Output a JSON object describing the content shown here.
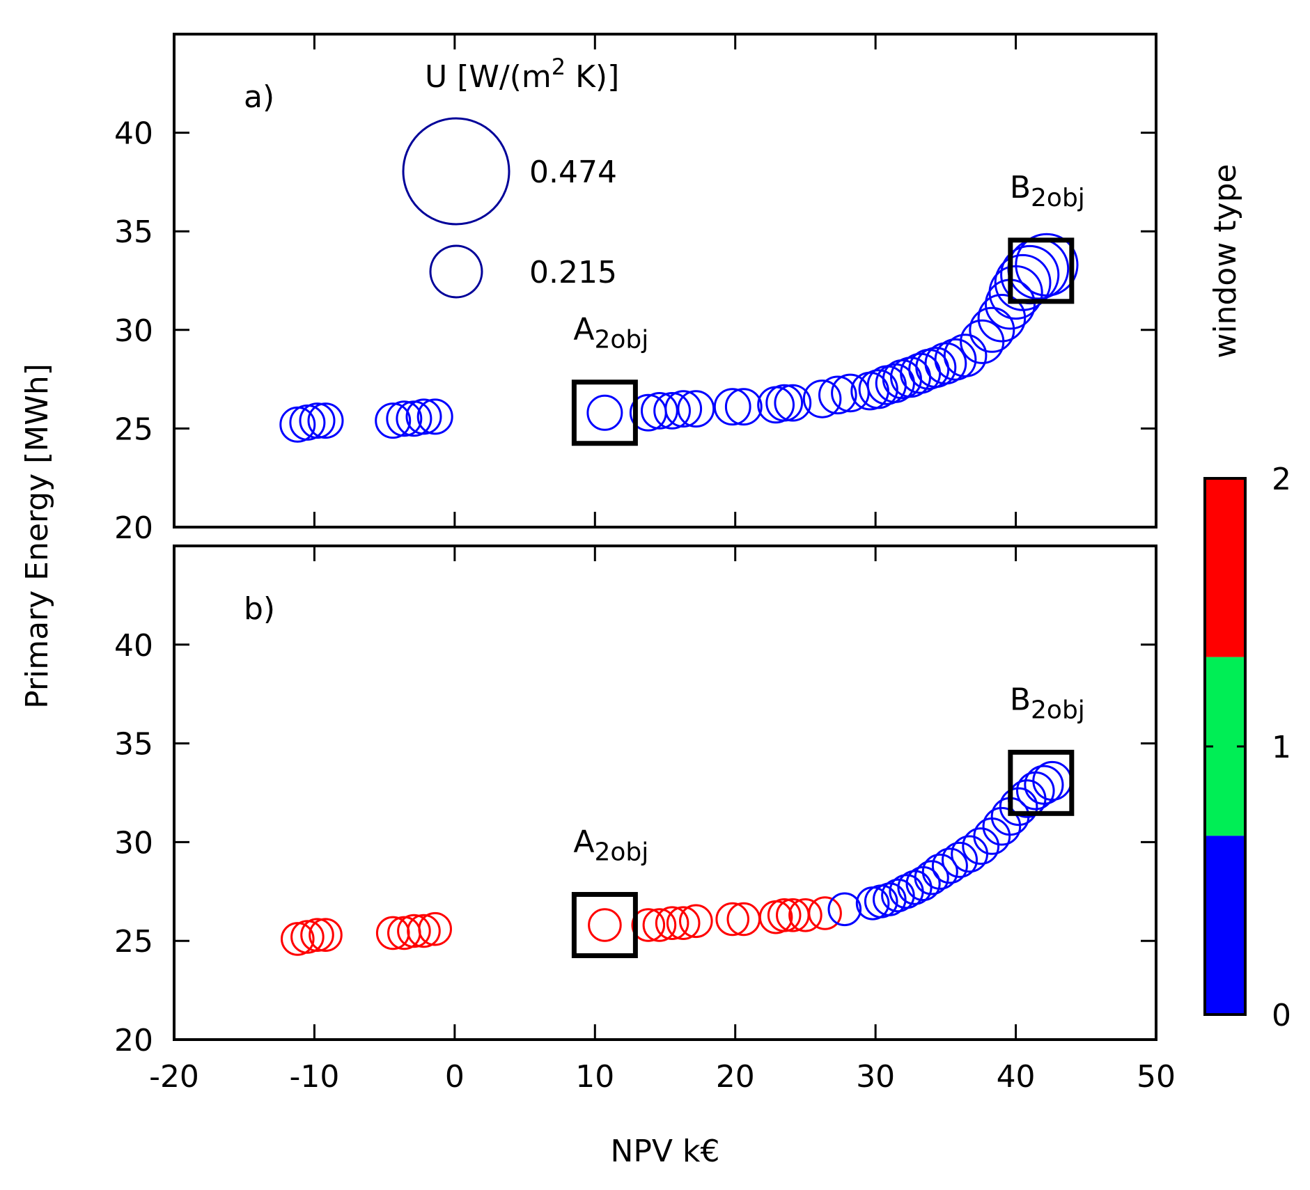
{
  "colors": {
    "type0": "#0000ff",
    "type1": "#00ee55",
    "type2": "#ff0000",
    "legend_circle": "#000099",
    "frame": "#000000",
    "marker_box": "#000000"
  },
  "chart_data": [
    {
      "type": "scatter",
      "panel_label": "a)",
      "xlim": [
        -20,
        50
      ],
      "ylim": [
        20,
        45
      ],
      "xticks": [
        -20,
        -10,
        0,
        10,
        20,
        30,
        40,
        50
      ],
      "yticks": [
        20,
        25,
        30,
        35,
        40
      ],
      "ytick_labels": [
        "20",
        "25",
        "30",
        "35",
        "40"
      ],
      "size_legend": {
        "title_prefix": "U [W/(m",
        "title_sup": "2",
        "title_suffix": " K)]",
        "entries": [
          {
            "label": "0.474",
            "u": 0.474
          },
          {
            "label": "0.215",
            "u": 0.215
          }
        ]
      },
      "annotations": [
        {
          "base": "A",
          "sub": "2obj",
          "x": 10.7,
          "y": 25.8
        },
        {
          "base": "B",
          "sub": "2obj",
          "x": 41.8,
          "y": 33.0
        }
      ],
      "points": [
        {
          "x": -11.2,
          "y": 25.2,
          "u": 0.25,
          "t": 0
        },
        {
          "x": -10.5,
          "y": 25.3,
          "u": 0.25,
          "t": 0
        },
        {
          "x": -9.8,
          "y": 25.4,
          "u": 0.25,
          "t": 0
        },
        {
          "x": -9.2,
          "y": 25.4,
          "u": 0.25,
          "t": 0
        },
        {
          "x": -4.4,
          "y": 25.4,
          "u": 0.25,
          "t": 0
        },
        {
          "x": -3.6,
          "y": 25.5,
          "u": 0.25,
          "t": 0
        },
        {
          "x": -2.9,
          "y": 25.5,
          "u": 0.25,
          "t": 0
        },
        {
          "x": -2.2,
          "y": 25.6,
          "u": 0.25,
          "t": 0
        },
        {
          "x": -1.4,
          "y": 25.6,
          "u": 0.25,
          "t": 0
        },
        {
          "x": 10.7,
          "y": 25.8,
          "u": 0.25,
          "t": 0
        },
        {
          "x": 13.8,
          "y": 25.8,
          "u": 0.26,
          "t": 0
        },
        {
          "x": 14.6,
          "y": 25.9,
          "u": 0.26,
          "t": 0
        },
        {
          "x": 15.5,
          "y": 25.9,
          "u": 0.26,
          "t": 0
        },
        {
          "x": 16.3,
          "y": 26.0,
          "u": 0.26,
          "t": 0
        },
        {
          "x": 17.2,
          "y": 26.0,
          "u": 0.26,
          "t": 0
        },
        {
          "x": 19.8,
          "y": 26.1,
          "u": 0.26,
          "t": 0
        },
        {
          "x": 20.6,
          "y": 26.1,
          "u": 0.26,
          "t": 0
        },
        {
          "x": 22.9,
          "y": 26.2,
          "u": 0.26,
          "t": 0
        },
        {
          "x": 23.5,
          "y": 26.3,
          "u": 0.26,
          "t": 0
        },
        {
          "x": 24.1,
          "y": 26.3,
          "u": 0.26,
          "t": 0
        },
        {
          "x": 26.2,
          "y": 26.5,
          "u": 0.27,
          "t": 0
        },
        {
          "x": 27.3,
          "y": 26.7,
          "u": 0.27,
          "t": 0
        },
        {
          "x": 28.2,
          "y": 26.8,
          "u": 0.27,
          "t": 0
        },
        {
          "x": 29.6,
          "y": 26.9,
          "u": 0.27,
          "t": 0
        },
        {
          "x": 30.2,
          "y": 27.0,
          "u": 0.28,
          "t": 0
        },
        {
          "x": 30.8,
          "y": 27.2,
          "u": 0.28,
          "t": 0
        },
        {
          "x": 31.4,
          "y": 27.3,
          "u": 0.28,
          "t": 0
        },
        {
          "x": 31.9,
          "y": 27.5,
          "u": 0.28,
          "t": 0
        },
        {
          "x": 32.5,
          "y": 27.6,
          "u": 0.29,
          "t": 0
        },
        {
          "x": 33.2,
          "y": 27.8,
          "u": 0.29,
          "t": 0
        },
        {
          "x": 33.8,
          "y": 28.0,
          "u": 0.29,
          "t": 0
        },
        {
          "x": 34.3,
          "y": 28.1,
          "u": 0.29,
          "t": 0
        },
        {
          "x": 35.0,
          "y": 28.3,
          "u": 0.3,
          "t": 0
        },
        {
          "x": 35.7,
          "y": 28.5,
          "u": 0.3,
          "t": 0
        },
        {
          "x": 36.4,
          "y": 28.7,
          "u": 0.31,
          "t": 0
        },
        {
          "x": 37.6,
          "y": 29.4,
          "u": 0.32,
          "t": 0
        },
        {
          "x": 38.3,
          "y": 30.0,
          "u": 0.33,
          "t": 0
        },
        {
          "x": 39.0,
          "y": 30.6,
          "u": 0.35,
          "t": 0
        },
        {
          "x": 39.6,
          "y": 31.3,
          "u": 0.37,
          "t": 0
        },
        {
          "x": 40.0,
          "y": 31.9,
          "u": 0.4,
          "t": 0
        },
        {
          "x": 40.5,
          "y": 32.4,
          "u": 0.42,
          "t": 0
        },
        {
          "x": 41.0,
          "y": 32.8,
          "u": 0.44,
          "t": 0
        },
        {
          "x": 41.6,
          "y": 33.1,
          "u": 0.46,
          "t": 0
        },
        {
          "x": 42.2,
          "y": 33.3,
          "u": 0.474,
          "t": 0
        }
      ]
    },
    {
      "type": "scatter",
      "panel_label": "b)",
      "xlabel": "NPV k€",
      "ylabel": "Primary Energy [MWh]",
      "xlim": [
        -20,
        50
      ],
      "ylim": [
        20,
        45
      ],
      "xticks": [
        -20,
        -10,
        0,
        10,
        20,
        30,
        40,
        50
      ],
      "xtick_labels": [
        "-20",
        "-10",
        "0",
        "10",
        "20",
        "30",
        "40",
        "50"
      ],
      "yticks": [
        20,
        25,
        30,
        35,
        40
      ],
      "ytick_labels": [
        "20",
        "25",
        "30",
        "35",
        "40"
      ],
      "colorbar": {
        "label": "window type",
        "min": 0,
        "max": 2,
        "ticks": [
          0,
          1,
          2
        ],
        "tick_labels": [
          "0",
          "1",
          "2"
        ]
      },
      "annotations": [
        {
          "base": "A",
          "sub": "2obj",
          "x": 10.7,
          "y": 25.8
        },
        {
          "base": "B",
          "sub": "2obj",
          "x": 41.8,
          "y": 33.0
        }
      ],
      "points": [
        {
          "x": -11.2,
          "y": 25.1,
          "u": 0.23,
          "t": 2
        },
        {
          "x": -10.5,
          "y": 25.2,
          "u": 0.23,
          "t": 2
        },
        {
          "x": -9.8,
          "y": 25.3,
          "u": 0.23,
          "t": 2
        },
        {
          "x": -9.2,
          "y": 25.3,
          "u": 0.23,
          "t": 2
        },
        {
          "x": -4.4,
          "y": 25.4,
          "u": 0.23,
          "t": 2
        },
        {
          "x": -3.6,
          "y": 25.4,
          "u": 0.23,
          "t": 2
        },
        {
          "x": -2.9,
          "y": 25.5,
          "u": 0.23,
          "t": 2
        },
        {
          "x": -2.2,
          "y": 25.5,
          "u": 0.23,
          "t": 2
        },
        {
          "x": -1.4,
          "y": 25.6,
          "u": 0.23,
          "t": 2
        },
        {
          "x": 10.7,
          "y": 25.8,
          "u": 0.23,
          "t": 2
        },
        {
          "x": 13.8,
          "y": 25.8,
          "u": 0.23,
          "t": 2
        },
        {
          "x": 14.6,
          "y": 25.8,
          "u": 0.23,
          "t": 2
        },
        {
          "x": 15.5,
          "y": 25.9,
          "u": 0.23,
          "t": 2
        },
        {
          "x": 16.3,
          "y": 25.9,
          "u": 0.23,
          "t": 2
        },
        {
          "x": 17.2,
          "y": 26.0,
          "u": 0.23,
          "t": 2
        },
        {
          "x": 19.8,
          "y": 26.1,
          "u": 0.23,
          "t": 2
        },
        {
          "x": 20.6,
          "y": 26.1,
          "u": 0.23,
          "t": 2
        },
        {
          "x": 22.9,
          "y": 26.2,
          "u": 0.23,
          "t": 2
        },
        {
          "x": 23.5,
          "y": 26.3,
          "u": 0.23,
          "t": 2
        },
        {
          "x": 24.1,
          "y": 26.3,
          "u": 0.23,
          "t": 2
        },
        {
          "x": 25.0,
          "y": 26.3,
          "u": 0.23,
          "t": 2
        },
        {
          "x": 26.4,
          "y": 26.4,
          "u": 0.23,
          "t": 2
        },
        {
          "x": 27.8,
          "y": 26.6,
          "u": 0.23,
          "t": 0
        },
        {
          "x": 29.8,
          "y": 26.9,
          "u": 0.23,
          "t": 0
        },
        {
          "x": 30.4,
          "y": 27.0,
          "u": 0.23,
          "t": 0
        },
        {
          "x": 31.0,
          "y": 27.1,
          "u": 0.23,
          "t": 0
        },
        {
          "x": 31.6,
          "y": 27.3,
          "u": 0.23,
          "t": 0
        },
        {
          "x": 32.2,
          "y": 27.5,
          "u": 0.24,
          "t": 0
        },
        {
          "x": 32.8,
          "y": 27.7,
          "u": 0.24,
          "t": 0
        },
        {
          "x": 33.4,
          "y": 27.9,
          "u": 0.24,
          "t": 0
        },
        {
          "x": 34.0,
          "y": 28.2,
          "u": 0.24,
          "t": 0
        },
        {
          "x": 34.6,
          "y": 28.5,
          "u": 0.25,
          "t": 0
        },
        {
          "x": 35.3,
          "y": 28.8,
          "u": 0.25,
          "t": 0
        },
        {
          "x": 36.0,
          "y": 29.1,
          "u": 0.25,
          "t": 0
        },
        {
          "x": 36.7,
          "y": 29.4,
          "u": 0.26,
          "t": 0
        },
        {
          "x": 37.5,
          "y": 29.8,
          "u": 0.26,
          "t": 0
        },
        {
          "x": 38.3,
          "y": 30.3,
          "u": 0.26,
          "t": 0
        },
        {
          "x": 39.0,
          "y": 30.8,
          "u": 0.27,
          "t": 0
        },
        {
          "x": 39.6,
          "y": 31.3,
          "u": 0.27,
          "t": 0
        },
        {
          "x": 40.2,
          "y": 31.8,
          "u": 0.27,
          "t": 0
        },
        {
          "x": 40.8,
          "y": 32.2,
          "u": 0.27,
          "t": 0
        },
        {
          "x": 41.4,
          "y": 32.6,
          "u": 0.27,
          "t": 0
        },
        {
          "x": 42.0,
          "y": 32.9,
          "u": 0.28,
          "t": 0
        },
        {
          "x": 42.6,
          "y": 33.1,
          "u": 0.28,
          "t": 0
        }
      ]
    }
  ]
}
